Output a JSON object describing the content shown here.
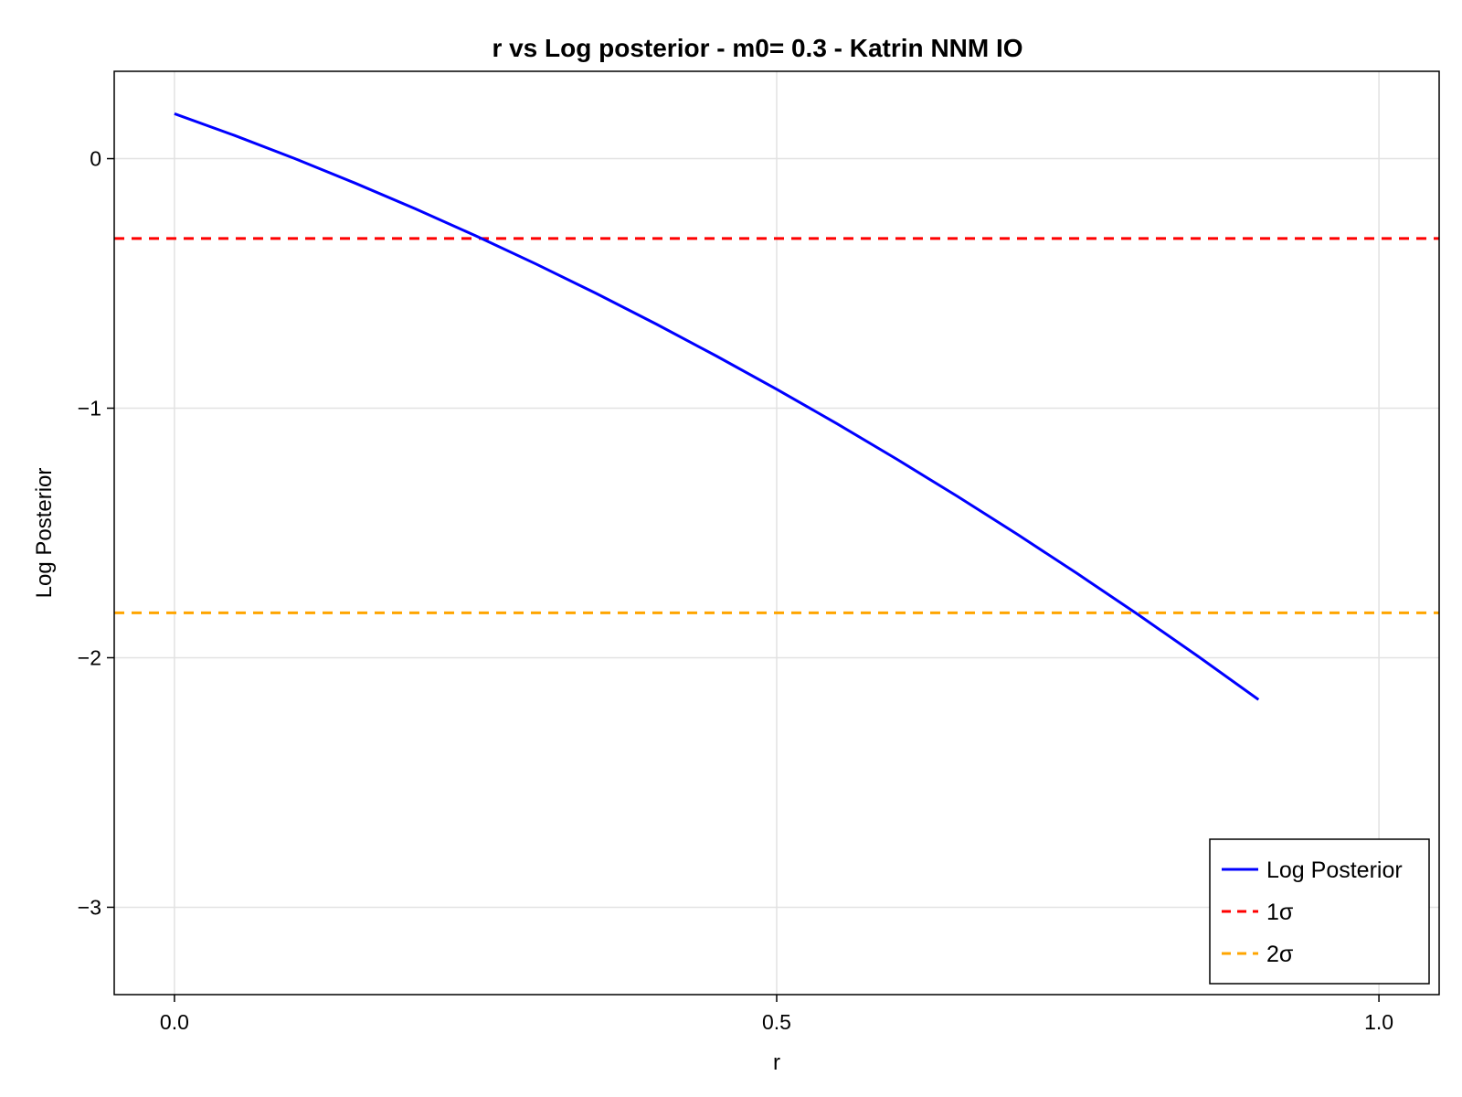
{
  "chart_data": {
    "type": "line",
    "title": "r vs Log posterior - m0= 0.3 - Katrin NNM IO",
    "xlabel": "r",
    "ylabel": "Log Posterior",
    "xlim": [
      -0.05,
      1.05
    ],
    "ylim": [
      -3.35,
      0.35
    ],
    "x_ticks": [
      0.0,
      0.5,
      1.0
    ],
    "x_tick_labels": [
      "0.0",
      "0.5",
      "1.0"
    ],
    "y_ticks": [
      0,
      -1,
      -2,
      -3
    ],
    "y_tick_labels": [
      "0",
      "−1",
      "−2",
      "−3"
    ],
    "grid": true,
    "legend_position": "bottom-right",
    "series": [
      {
        "name": "Log Posterior",
        "color": "#0000ff",
        "style": "solid",
        "x": [
          0.0,
          0.05,
          0.1,
          0.15,
          0.2,
          0.25,
          0.3,
          0.35,
          0.4,
          0.45,
          0.5,
          0.55,
          0.6,
          0.65,
          0.7,
          0.75,
          0.8,
          0.85,
          0.9
        ],
        "y": [
          0.18,
          0.093,
          0.0,
          -0.098,
          -0.201,
          -0.309,
          -0.422,
          -0.54,
          -0.663,
          -0.791,
          -0.924,
          -1.062,
          -1.205,
          -1.353,
          -1.506,
          -1.664,
          -1.827,
          -1.995,
          -2.168
        ]
      }
    ],
    "hlines": [
      {
        "name": "1σ",
        "y": -0.32,
        "color": "#ff0000",
        "style": "dashed"
      },
      {
        "name": "2σ",
        "y": -1.82,
        "color": "#ffa500",
        "style": "dashed"
      }
    ]
  }
}
